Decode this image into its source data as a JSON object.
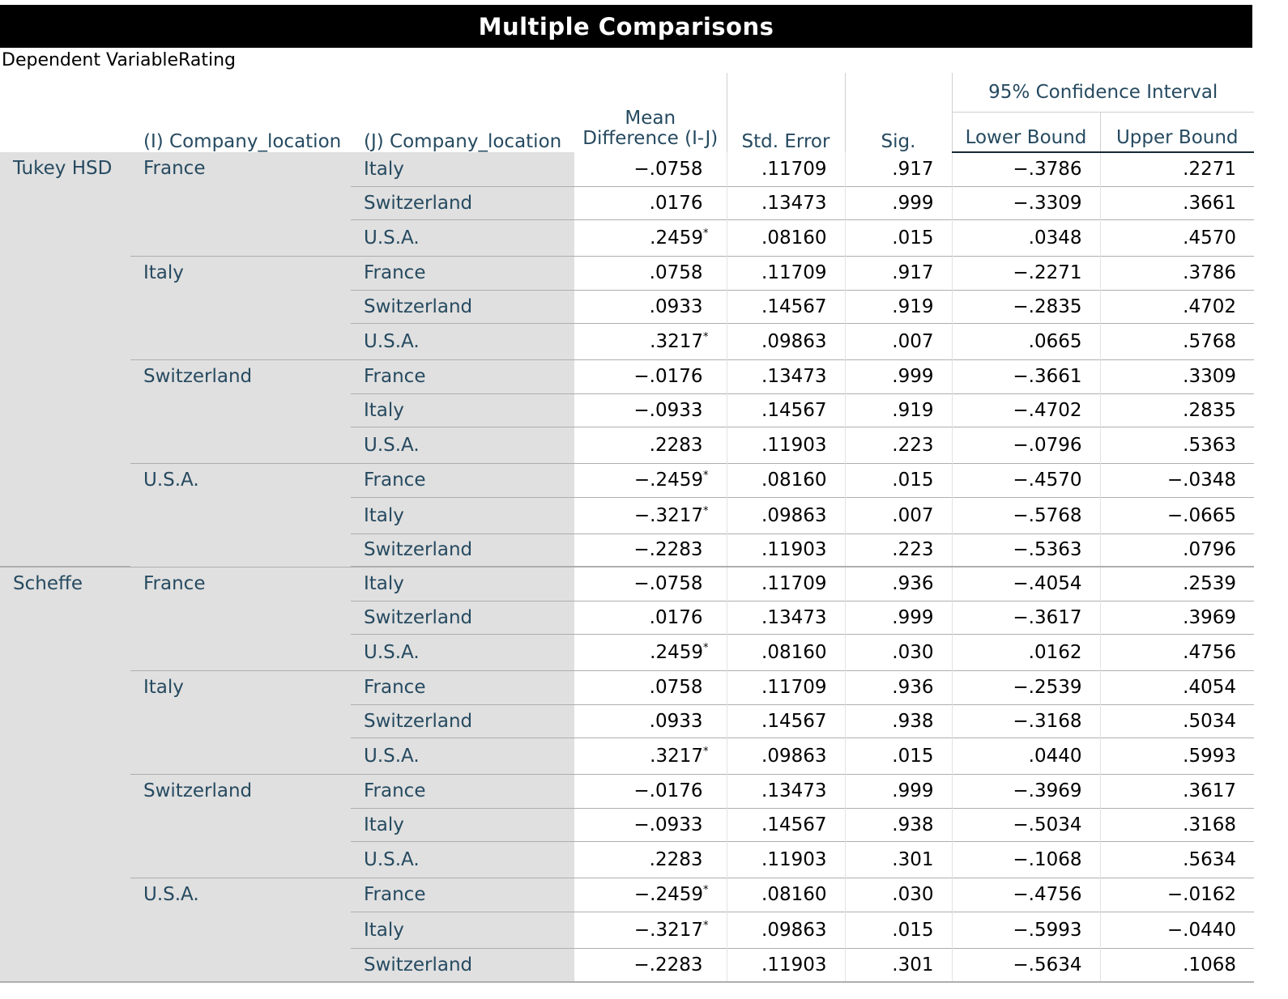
{
  "title": "Multiple Comparisons",
  "dependent_variable": "Dependent VariableRating",
  "headers": {
    "i": "(I) Company_location",
    "j": "(J) Company_location",
    "mean_diff": "Mean Difference (I-J)",
    "std_error": "Std. Error",
    "sig": "Sig.",
    "ci": "95% Confidence Interval",
    "lower": "Lower Bound",
    "upper": "Upper Bound"
  },
  "methods": [
    {
      "name": "Tukey HSD",
      "groups": [
        {
          "i": "France",
          "rows": [
            {
              "j": "Italy",
              "mean": "-.0758",
              "star": "",
              "se": ".11709",
              "sig": ".917",
              "lower": "-.3786",
              "upper": ".2271"
            },
            {
              "j": "Switzerland",
              "mean": ".0176",
              "star": "",
              "se": ".13473",
              "sig": ".999",
              "lower": "-.3309",
              "upper": ".3661"
            },
            {
              "j": "U.S.A.",
              "mean": ".2459",
              "star": "*",
              "se": ".08160",
              "sig": ".015",
              "lower": ".0348",
              "upper": ".4570"
            }
          ]
        },
        {
          "i": "Italy",
          "rows": [
            {
              "j": "France",
              "mean": ".0758",
              "star": "",
              "se": ".11709",
              "sig": ".917",
              "lower": "-.2271",
              "upper": ".3786"
            },
            {
              "j": "Switzerland",
              "mean": ".0933",
              "star": "",
              "se": ".14567",
              "sig": ".919",
              "lower": "-.2835",
              "upper": ".4702"
            },
            {
              "j": "U.S.A.",
              "mean": ".3217",
              "star": "*",
              "se": ".09863",
              "sig": ".007",
              "lower": ".0665",
              "upper": ".5768"
            }
          ]
        },
        {
          "i": "Switzerland",
          "rows": [
            {
              "j": "France",
              "mean": "-.0176",
              "star": "",
              "se": ".13473",
              "sig": ".999",
              "lower": "-.3661",
              "upper": ".3309"
            },
            {
              "j": "Italy",
              "mean": "-.0933",
              "star": "",
              "se": ".14567",
              "sig": ".919",
              "lower": "-.4702",
              "upper": ".2835"
            },
            {
              "j": "U.S.A.",
              "mean": ".2283",
              "star": "",
              "se": ".11903",
              "sig": ".223",
              "lower": "-.0796",
              "upper": ".5363"
            }
          ]
        },
        {
          "i": "U.S.A.",
          "rows": [
            {
              "j": "France",
              "mean": "-.2459",
              "star": "*",
              "se": ".08160",
              "sig": ".015",
              "lower": "-.4570",
              "upper": "-.0348"
            },
            {
              "j": "Italy",
              "mean": "-.3217",
              "star": "*",
              "se": ".09863",
              "sig": ".007",
              "lower": "-.5768",
              "upper": "-.0665"
            },
            {
              "j": "Switzerland",
              "mean": "-.2283",
              "star": "",
              "se": ".11903",
              "sig": ".223",
              "lower": "-.5363",
              "upper": ".0796"
            }
          ]
        }
      ]
    },
    {
      "name": "Scheffe",
      "groups": [
        {
          "i": "France",
          "rows": [
            {
              "j": "Italy",
              "mean": "-.0758",
              "star": "",
              "se": ".11709",
              "sig": ".936",
              "lower": "-.4054",
              "upper": ".2539"
            },
            {
              "j": "Switzerland",
              "mean": ".0176",
              "star": "",
              "se": ".13473",
              "sig": ".999",
              "lower": "-.3617",
              "upper": ".3969"
            },
            {
              "j": "U.S.A.",
              "mean": ".2459",
              "star": "*",
              "se": ".08160",
              "sig": ".030",
              "lower": ".0162",
              "upper": ".4756"
            }
          ]
        },
        {
          "i": "Italy",
          "rows": [
            {
              "j": "France",
              "mean": ".0758",
              "star": "",
              "se": ".11709",
              "sig": ".936",
              "lower": "-.2539",
              "upper": ".4054"
            },
            {
              "j": "Switzerland",
              "mean": ".0933",
              "star": "",
              "se": ".14567",
              "sig": ".938",
              "lower": "-.3168",
              "upper": ".5034"
            },
            {
              "j": "U.S.A.",
              "mean": ".3217",
              "star": "*",
              "se": ".09863",
              "sig": ".015",
              "lower": ".0440",
              "upper": ".5993"
            }
          ]
        },
        {
          "i": "Switzerland",
          "rows": [
            {
              "j": "France",
              "mean": "-.0176",
              "star": "",
              "se": ".13473",
              "sig": ".999",
              "lower": "-.3969",
              "upper": ".3617"
            },
            {
              "j": "Italy",
              "mean": "-.0933",
              "star": "",
              "se": ".14567",
              "sig": ".938",
              "lower": "-.5034",
              "upper": ".3168"
            },
            {
              "j": "U.S.A.",
              "mean": ".2283",
              "star": "",
              "se": ".11903",
              "sig": ".301",
              "lower": "-.1068",
              "upper": ".5634"
            }
          ]
        },
        {
          "i": "U.S.A.",
          "rows": [
            {
              "j": "France",
              "mean": "-.2459",
              "star": "*",
              "se": ".08160",
              "sig": ".030",
              "lower": "-.4756",
              "upper": "-.0162"
            },
            {
              "j": "Italy",
              "mean": "-.3217",
              "star": "*",
              "se": ".09863",
              "sig": ".015",
              "lower": "-.5993",
              "upper": "-.0440"
            },
            {
              "j": "Switzerland",
              "mean": "-.2283",
              "star": "",
              "se": ".11903",
              "sig": ".301",
              "lower": "-.5634",
              "upper": ".1068"
            }
          ]
        }
      ]
    }
  ]
}
